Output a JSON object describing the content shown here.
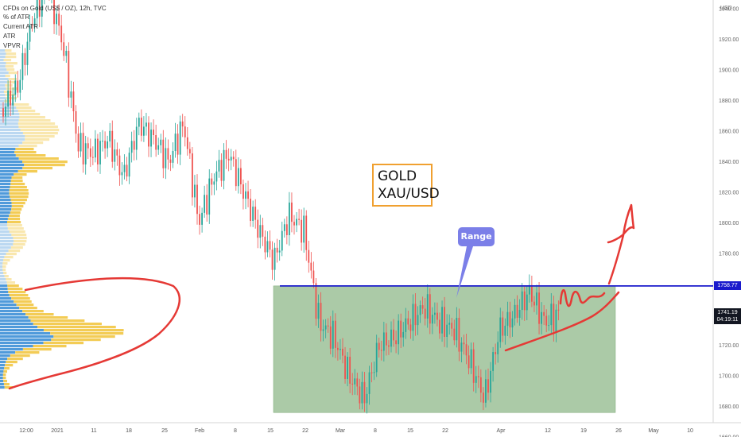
{
  "header": {
    "symbol_line": "CFDs on Gold (US$ / OZ), 12h, TVC",
    "indicators": [
      "% of ATR",
      "Current ATR",
      "ATR",
      "VPVR"
    ]
  },
  "axis": {
    "currency": "USD"
  },
  "annotations": {
    "title_line1": "GOLD",
    "title_line2": "XAU/USD",
    "range_label": "Range"
  },
  "price_tags": {
    "resistance": "1758.77",
    "last_price": "1741.19",
    "countdown": "04:19:11"
  },
  "colors": {
    "up_candle": "#26a69a",
    "down_candle": "#ef5350",
    "resistance_line": "#1a1acc",
    "range_zone": "#8fb889",
    "vp_blue": "#3d8fd6",
    "vp_yellow": "#f2c94c",
    "drawing_red": "#e53935"
  },
  "chart_data": {
    "type": "candlestick",
    "title": "CFDs on Gold (US$ / OZ), 12h, TVC",
    "ylabel": "USD",
    "ylim": [
      1650,
      1985
    ],
    "y_ticks": [
      1660,
      1680,
      1700,
      1720,
      1740,
      1760,
      1780,
      1800,
      1820,
      1840,
      1860,
      1880,
      1900,
      1920,
      1940,
      1960,
      1980
    ],
    "x_ticks": [
      "12:00",
      "2021",
      "11",
      "18",
      "25",
      "Feb",
      "8",
      "15",
      "22",
      "Mar",
      "8",
      "15",
      "22",
      "Apr",
      "12",
      "19",
      "26",
      "May",
      "10"
    ],
    "resistance_level": 1758.77,
    "last_price": 1741.19,
    "range_zone": {
      "top": 1758.77,
      "bottom": 1676
    },
    "close_path": [
      {
        "date": "Dec 29",
        "close": 1875
      },
      {
        "date": "Dec 31",
        "close": 1890
      },
      {
        "date": "Jan 4",
        "close": 1935
      },
      {
        "date": "Jan 6",
        "close": 1955
      },
      {
        "date": "Jan 7",
        "close": 1915
      },
      {
        "date": "Jan 8",
        "close": 1850
      },
      {
        "date": "Jan 11",
        "close": 1845
      },
      {
        "date": "Jan 14",
        "close": 1855
      },
      {
        "date": "Jan 18",
        "close": 1830
      },
      {
        "date": "Jan 21",
        "close": 1865
      },
      {
        "date": "Jan 25",
        "close": 1855
      },
      {
        "date": "Jan 28",
        "close": 1840
      },
      {
        "date": "Feb 1",
        "close": 1865
      },
      {
        "date": "Feb 4",
        "close": 1800
      },
      {
        "date": "Feb 8",
        "close": 1830
      },
      {
        "date": "Feb 10",
        "close": 1845
      },
      {
        "date": "Feb 12",
        "close": 1820
      },
      {
        "date": "Feb 15",
        "close": 1795
      },
      {
        "date": "Feb 18",
        "close": 1775
      },
      {
        "date": "Feb 22",
        "close": 1805
      },
      {
        "date": "Feb 24",
        "close": 1795
      },
      {
        "date": "Feb 26",
        "close": 1735
      },
      {
        "date": "Mar 2",
        "close": 1725
      },
      {
        "date": "Mar 4",
        "close": 1700
      },
      {
        "date": "Mar 8",
        "close": 1685
      },
      {
        "date": "Mar 10",
        "close": 1720
      },
      {
        "date": "Mar 12",
        "close": 1725
      },
      {
        "date": "Mar 16",
        "close": 1735
      },
      {
        "date": "Mar 18",
        "close": 1745
      },
      {
        "date": "Mar 22",
        "close": 1735
      },
      {
        "date": "Mar 25",
        "close": 1730
      },
      {
        "date": "Mar 29",
        "close": 1710
      },
      {
        "date": "Mar 31",
        "close": 1685
      },
      {
        "date": "Apr 2",
        "close": 1730
      },
      {
        "date": "Apr 6",
        "close": 1740
      },
      {
        "date": "Apr 9",
        "close": 1755
      },
      {
        "date": "Apr 12",
        "close": 1735
      },
      {
        "date": "Apr 14",
        "close": 1741
      }
    ]
  }
}
